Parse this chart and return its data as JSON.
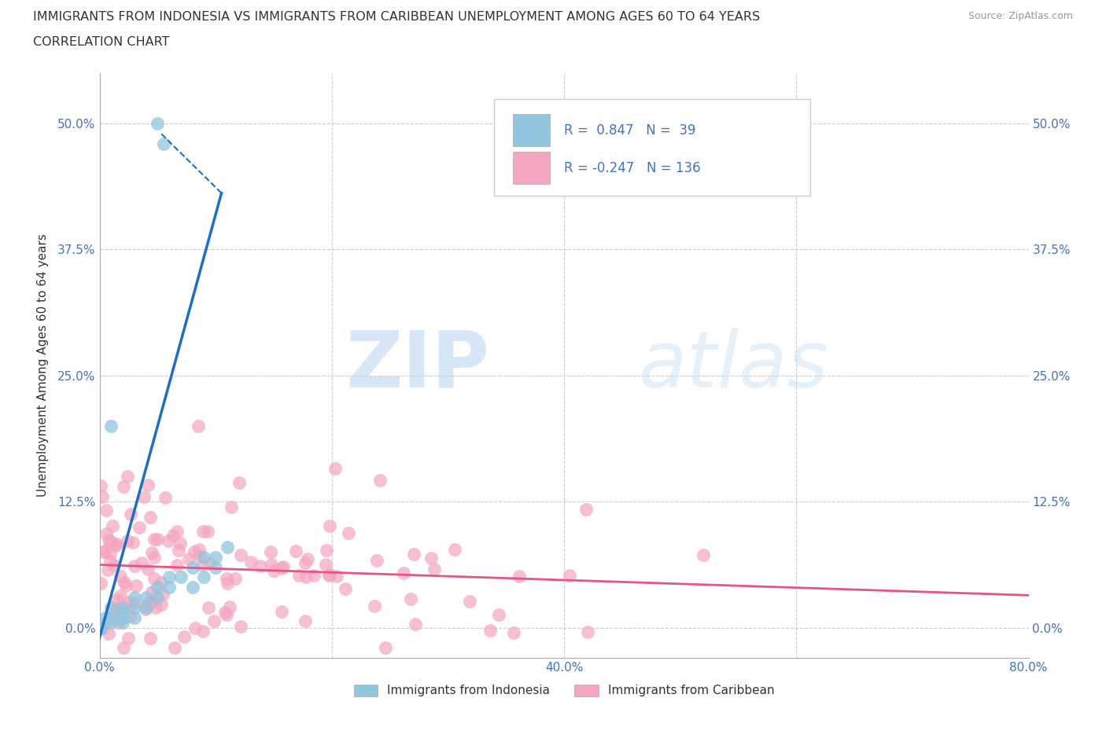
{
  "title_line1": "IMMIGRANTS FROM INDONESIA VS IMMIGRANTS FROM CARIBBEAN UNEMPLOYMENT AMONG AGES 60 TO 64 YEARS",
  "title_line2": "CORRELATION CHART",
  "source": "Source: ZipAtlas.com",
  "ylabel": "Unemployment Among Ages 60 to 64 years",
  "xlim": [
    0.0,
    0.8
  ],
  "ylim": [
    -0.03,
    0.55
  ],
  "xticks": [
    0.0,
    0.2,
    0.4,
    0.6,
    0.8
  ],
  "yticks": [
    0.0,
    0.125,
    0.25,
    0.375,
    0.5
  ],
  "xticklabels": [
    "0.0%",
    "",
    "40.0%",
    "",
    "80.0%"
  ],
  "yticklabels": [
    "0.0%",
    "12.5%",
    "25.0%",
    "37.5%",
    "50.0%"
  ],
  "indonesia_color": "#92c5de",
  "caribbean_color": "#f4a6be",
  "indonesia_line_color": "#1f6fbf",
  "caribbean_line_color": "#e8538a",
  "indonesia_R": 0.847,
  "indonesia_N": 39,
  "caribbean_R": -0.247,
  "caribbean_N": 136,
  "watermark_zip": "ZIP",
  "watermark_atlas": "atlas",
  "background_color": "#ffffff",
  "grid_color": "#cccccc",
  "title_color": "#333333",
  "axis_label_color": "#333333",
  "tick_color": "#4472c4",
  "legend_color": "#4472c4"
}
